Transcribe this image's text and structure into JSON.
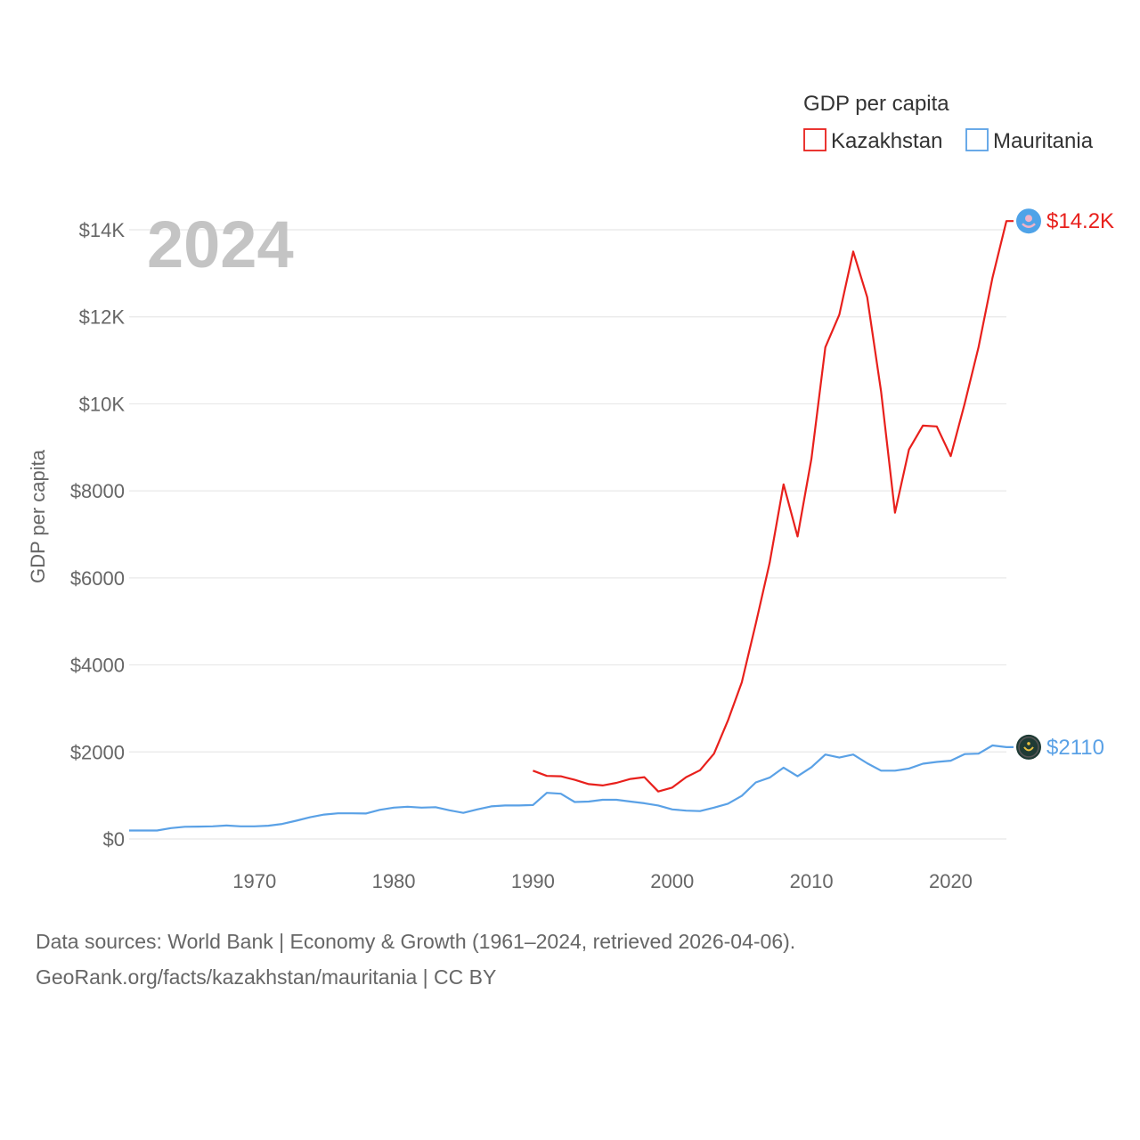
{
  "chart_data": {
    "type": "line",
    "year_label": "2024",
    "ylabel": "GDP per capita",
    "xlabel": "",
    "xlim": [
      1961,
      2024
    ],
    "ylim": [
      0,
      14000
    ],
    "x_ticks": [
      1970,
      1980,
      1990,
      2000,
      2010,
      2020
    ],
    "y_ticks": [
      {
        "value": 0,
        "label": "$0"
      },
      {
        "value": 2000,
        "label": "$2000"
      },
      {
        "value": 4000,
        "label": "$4000"
      },
      {
        "value": 6000,
        "label": "$6000"
      },
      {
        "value": 8000,
        "label": "$8000"
      },
      {
        "value": 10000,
        "label": "$10K"
      },
      {
        "value": 12000,
        "label": "$12K"
      },
      {
        "value": 14000,
        "label": "$14K"
      }
    ],
    "legend": {
      "title": "GDP per capita",
      "position": "top-right"
    },
    "series": [
      {
        "name": "Kazakhstan",
        "color": "#e8201c",
        "end_label": "$14.2K",
        "x": [
          1990,
          1991,
          1992,
          1993,
          1994,
          1995,
          1996,
          1997,
          1998,
          1999,
          2000,
          2001,
          2002,
          2003,
          2004,
          2005,
          2006,
          2007,
          2008,
          2009,
          2010,
          2011,
          2012,
          2013,
          2014,
          2015,
          2016,
          2017,
          2018,
          2019,
          2020,
          2021,
          2022,
          2023,
          2024
        ],
        "values": [
          1570,
          1450,
          1440,
          1360,
          1260,
          1230,
          1290,
          1380,
          1420,
          1090,
          1180,
          1420,
          1580,
          1960,
          2720,
          3600,
          4950,
          6350,
          8150,
          6950,
          8740,
          11300,
          12050,
          13500,
          12450,
          10280,
          7500,
          8950,
          9500,
          9480,
          8800,
          10000,
          11300,
          12900,
          14200
        ]
      },
      {
        "name": "Mauritania",
        "color": "#5aa1e6",
        "end_label": "$2110",
        "x": [
          1961,
          1962,
          1963,
          1964,
          1965,
          1966,
          1967,
          1968,
          1969,
          1970,
          1971,
          1972,
          1973,
          1974,
          1975,
          1976,
          1977,
          1978,
          1979,
          1980,
          1981,
          1982,
          1983,
          1984,
          1985,
          1986,
          1987,
          1988,
          1989,
          1990,
          1991,
          1992,
          1993,
          1994,
          1995,
          1996,
          1997,
          1998,
          1999,
          2000,
          2001,
          2002,
          2003,
          2004,
          2005,
          2006,
          2007,
          2008,
          2009,
          2010,
          2011,
          2012,
          2013,
          2014,
          2015,
          2016,
          2017,
          2018,
          2019,
          2020,
          2021,
          2022,
          2023,
          2024
        ],
        "values": [
          195,
          195,
          195,
          250,
          280,
          285,
          290,
          310,
          290,
          290,
          305,
          345,
          420,
          500,
          560,
          590,
          590,
          585,
          670,
          720,
          740,
          720,
          730,
          660,
          600,
          680,
          750,
          770,
          770,
          780,
          1060,
          1040,
          850,
          860,
          900,
          900,
          860,
          820,
          770,
          680,
          650,
          640,
          720,
          810,
          990,
          1300,
          1410,
          1640,
          1440,
          1650,
          1940,
          1870,
          1940,
          1740,
          1570,
          1570,
          1620,
          1730,
          1770,
          1800,
          1950,
          1960,
          2150,
          2110
        ]
      }
    ]
  },
  "source": {
    "line1": "Data sources: World Bank | Economy & Growth (1961–2024, retrieved 2026-04-06).",
    "line2": "GeoRank.org/facts/kazakhstan/mauritania | CC BY"
  }
}
